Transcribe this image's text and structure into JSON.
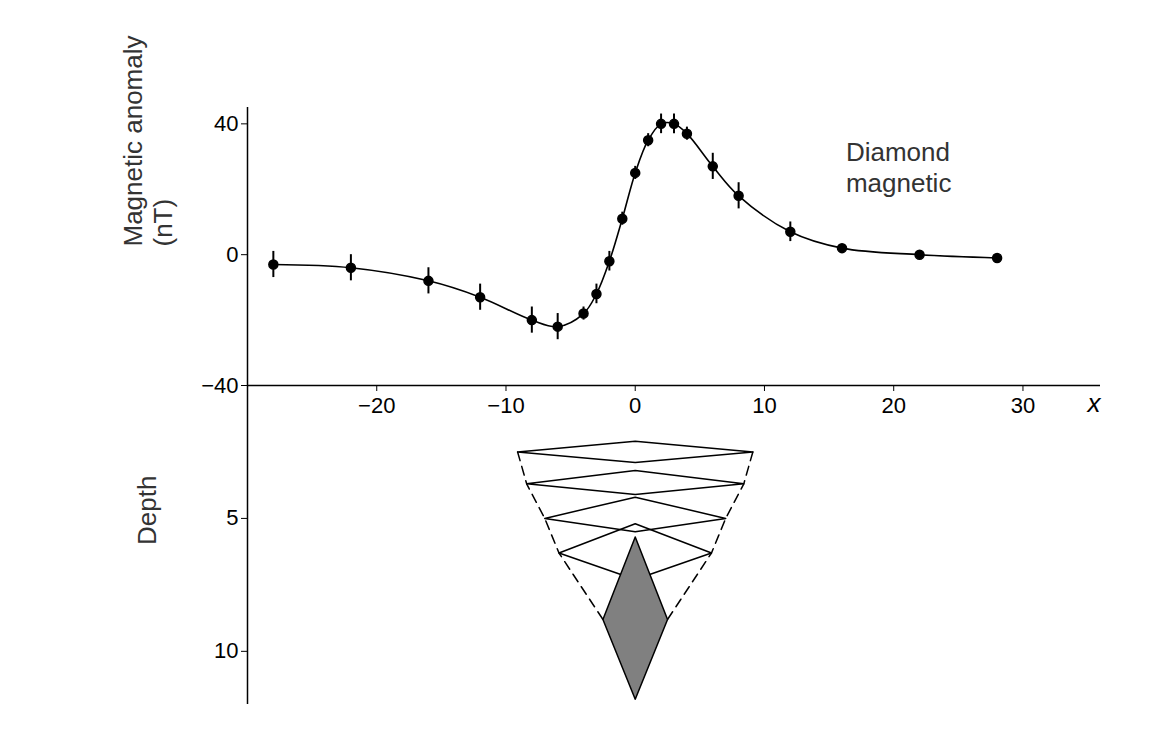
{
  "chart_data": [
    {
      "type": "line",
      "ylabel": "Magnetic anomaly (nT)",
      "xlabel": "x",
      "annotation": {
        "text": "Diamond magnetic",
        "x": 16.3,
        "y": 27
      },
      "color": "#000000",
      "marker": "circle",
      "x": [
        -28,
        -22,
        -16,
        -12,
        -8,
        -6,
        -4,
        -3,
        -2,
        -1,
        0,
        1,
        2,
        3,
        4,
        6,
        8,
        12,
        16,
        22,
        28
      ],
      "values": [
        -3,
        -4,
        -8,
        -13,
        -20,
        -22,
        -18,
        -12,
        -2,
        11,
        25,
        35,
        40,
        40,
        37,
        27,
        18,
        7,
        2,
        0,
        -1
      ],
      "errors": [
        4,
        4,
        4,
        4,
        4,
        4,
        2,
        3,
        3,
        2,
        2,
        2,
        3,
        3,
        2,
        4,
        4,
        3,
        1,
        1,
        1
      ],
      "xlim": [
        -30,
        36
      ],
      "xticks": [
        -20,
        -10,
        0,
        10,
        20,
        30
      ],
      "ylim": [
        -40,
        45
      ],
      "yticks": [
        -40,
        0,
        40
      ]
    },
    {
      "type": "polygon",
      "ylabel": "Depth",
      "color": "#000000",
      "xlim": [
        -30,
        36
      ],
      "ylim": [
        0,
        12
      ],
      "yticks": [
        5,
        10
      ],
      "tick_labels": "y",
      "bodies": [
        {
          "x": 0,
          "top_depth": 2.1,
          "widest_depth": 2.5,
          "bottom_depth": 2.9,
          "half_width": 9.1,
          "color": "none"
        },
        {
          "x": 0,
          "top_depth": 3.2,
          "widest_depth": 3.7,
          "bottom_depth": 4.1,
          "half_width": 8.4,
          "color": "none"
        },
        {
          "x": 0,
          "top_depth": 4.2,
          "widest_depth": 5.0,
          "bottom_depth": 5.5,
          "half_width": 7.0,
          "color": "none"
        },
        {
          "x": 0,
          "top_depth": 5.2,
          "widest_depth": 6.3,
          "bottom_depth": 7.3,
          "half_width": 5.9,
          "color": "none"
        },
        {
          "x": 0,
          "top_depth": 5.7,
          "widest_depth": 8.8,
          "bottom_depth": 11.8,
          "half_width": 2.5,
          "color": "#808080"
        }
      ]
    }
  ]
}
